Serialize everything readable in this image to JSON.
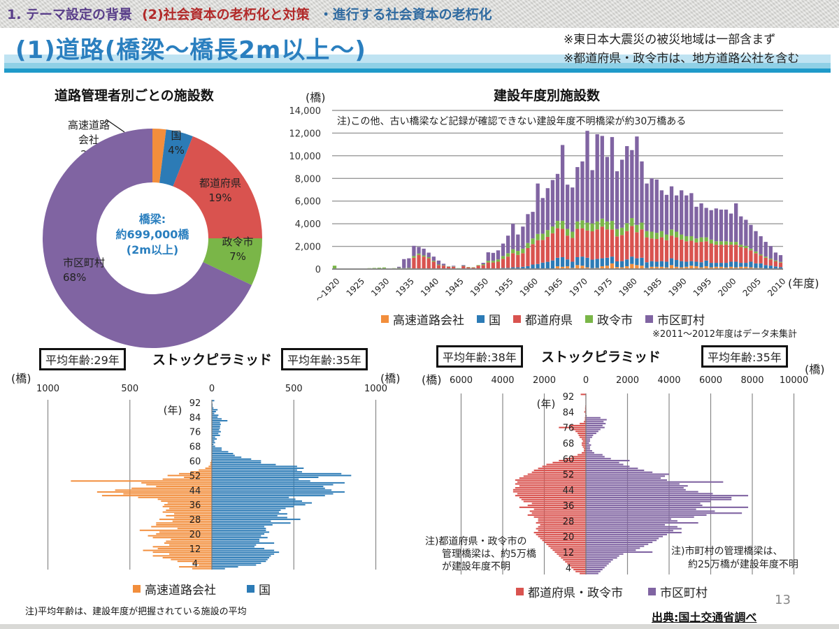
{
  "breadcrumb": {
    "part1": "1. テーマ設定の背景",
    "part2": "(2)社会資本の老朽化と対策",
    "part3": "・進行する社会資本の老朽化"
  },
  "page_title": "(1)道路(橋梁～橋長2m以上～)",
  "top_notes": [
    "※東日本大震災の被災地域は一部含まず",
    "※都道府県・政令市は、地方道路公社を含む"
  ],
  "colors": {
    "expressway": "#f28e3c",
    "national": "#2c7bb6",
    "prefecture": "#d9534f",
    "designated_city": "#7ab648",
    "municipality": "#8064a2",
    "title_blue": "#2a7fbf"
  },
  "page_number": "13",
  "source": "出典:国土交通省調べ",
  "bottom_left_note": "注)平均年齢は、建設年度が把握されている施設の平均",
  "chart_data": [
    {
      "type": "pie",
      "title": "道路管理者別ごとの施設数",
      "center_label": [
        "橋梁:",
        "約699,000橋",
        "(2m以上)"
      ],
      "slices": [
        {
          "label": "高速道路会社",
          "label_lines": [
            "高速道路",
            "会社"
          ],
          "value": 2,
          "text": "2%",
          "color": "#f28e3c"
        },
        {
          "label": "国",
          "label_lines": [
            "国"
          ],
          "value": 4,
          "text": "4%",
          "color": "#2c7bb6"
        },
        {
          "label": "都道府県",
          "label_lines": [
            "都道府県"
          ],
          "value": 19,
          "text": "19%",
          "color": "#d9534f"
        },
        {
          "label": "政令市",
          "label_lines": [
            "政令市"
          ],
          "value": 7,
          "text": "7%",
          "color": "#7ab648"
        },
        {
          "label": "市区町村",
          "label_lines": [
            "市区町村"
          ],
          "value": 68,
          "text": "68%",
          "color": "#8064a2"
        }
      ]
    },
    {
      "type": "bar",
      "stacked": true,
      "title": "建設年度別施設数",
      "ylabel": "(橋)",
      "xlabel": "(年度)",
      "ylim": [
        0,
        14000
      ],
      "yticks": [
        "0",
        "2,000",
        "4,000",
        "6,000",
        "8,000",
        "10,000",
        "12,000",
        "14,000"
      ],
      "ytick_values": [
        0,
        2000,
        4000,
        6000,
        8000,
        10000,
        12000,
        14000
      ],
      "xtick_labels": [
        "～1920",
        "1925",
        "1930",
        "1935",
        "1940",
        "1945",
        "1950",
        "1955",
        "1960",
        "1965",
        "1970",
        "1975",
        "1980",
        "1985",
        "1990",
        "1995",
        "2000",
        "2005",
        "2010"
      ],
      "annotation": "注)この他、古い橋梁など記録が確認できない建設年度不明橋梁が約30万橋ある",
      "footnote": "※2011～2012年度はデータ未集計",
      "grid": true,
      "legend_position": "bottom",
      "x_start": 1920,
      "x_end": 2010,
      "series": [
        {
          "name": "高速道路会社",
          "color": "#f28e3c",
          "values": [
            0,
            0,
            0,
            0,
            0,
            0,
            0,
            0,
            0,
            0,
            0,
            0,
            0,
            0,
            0,
            0,
            0,
            0,
            0,
            0,
            0,
            0,
            0,
            0,
            0,
            0,
            0,
            0,
            0,
            0,
            0,
            0,
            0,
            0,
            0,
            0,
            0,
            0,
            0,
            0,
            0,
            0,
            20,
            40,
            60,
            250,
            200,
            250,
            100,
            350,
            300,
            150,
            80,
            100,
            250,
            300,
            500,
            180,
            150,
            250,
            450,
            350,
            300,
            100,
            200,
            200,
            200,
            150,
            350,
            200,
            150,
            200,
            300,
            250,
            150,
            250,
            150,
            200,
            200,
            150,
            200,
            150,
            200,
            200,
            150,
            100,
            100,
            50,
            50,
            30,
            20
          ]
        },
        {
          "name": "国",
          "color": "#2c7bb6",
          "values": [
            0,
            0,
            0,
            0,
            0,
            0,
            0,
            0,
            0,
            0,
            0,
            0,
            0,
            0,
            0,
            0,
            0,
            0,
            0,
            0,
            0,
            0,
            0,
            0,
            0,
            0,
            0,
            0,
            0,
            0,
            0,
            30,
            30,
            50,
            100,
            100,
            150,
            150,
            200,
            250,
            400,
            450,
            550,
            600,
            700,
            750,
            850,
            600,
            550,
            700,
            800,
            850,
            750,
            800,
            700,
            700,
            600,
            500,
            550,
            600,
            650,
            600,
            700,
            500,
            500,
            450,
            500,
            500,
            600,
            600,
            550,
            450,
            400,
            400,
            450,
            500,
            400,
            350,
            350,
            400,
            450,
            500,
            350,
            350,
            500,
            400,
            400,
            300,
            250,
            200,
            150
          ]
        },
        {
          "name": "都道府県",
          "color": "#d9534f",
          "values": [
            0,
            0,
            0,
            0,
            0,
            0,
            0,
            0,
            0,
            0,
            0,
            0,
            0,
            0,
            0,
            0,
            1000,
            1250,
            1100,
            950,
            650,
            350,
            300,
            200,
            200,
            60,
            250,
            150,
            130,
            300,
            350,
            550,
            550,
            600,
            800,
            1000,
            1250,
            1100,
            1200,
            1600,
            1800,
            2100,
            2000,
            2200,
            2400,
            2600,
            2500,
            2100,
            2100,
            2500,
            2500,
            2400,
            2500,
            2600,
            2800,
            2500,
            2400,
            2200,
            2300,
            2500,
            2700,
            2300,
            2500,
            2200,
            2000,
            2000,
            2100,
            1900,
            2000,
            2000,
            1900,
            1800,
            1800,
            1700,
            1800,
            1700,
            1700,
            1600,
            1600,
            1600,
            1500,
            1500,
            1400,
            1300,
            1000,
            900,
            700,
            650,
            550,
            450,
            400
          ]
        },
        {
          "name": "政令市",
          "color": "#7ab648",
          "values": [
            300,
            0,
            0,
            0,
            0,
            50,
            60,
            80,
            100,
            120,
            140,
            60,
            80,
            100,
            80,
            100,
            150,
            120,
            100,
            100,
            80,
            50,
            30,
            30,
            30,
            20,
            30,
            30,
            30,
            50,
            80,
            150,
            150,
            200,
            250,
            300,
            350,
            350,
            400,
            450,
            500,
            550,
            550,
            600,
            600,
            650,
            700,
            600,
            550,
            650,
            700,
            700,
            700,
            700,
            700,
            700,
            750,
            650,
            650,
            700,
            700,
            650,
            600,
            550,
            600,
            550,
            550,
            500,
            550,
            500,
            450,
            450,
            400,
            350,
            400,
            350,
            350,
            300,
            300,
            300,
            250,
            250,
            200,
            200,
            150,
            150,
            100,
            100,
            80,
            80,
            60
          ]
        },
        {
          "name": "市区町村",
          "color": "#8064a2",
          "values": [
            0,
            0,
            0,
            0,
            0,
            0,
            0,
            0,
            0,
            0,
            0,
            0,
            0,
            100,
            800,
            850,
            900,
            580,
            600,
            400,
            370,
            350,
            140,
            20,
            60,
            0,
            70,
            0,
            0,
            0,
            120,
            750,
            700,
            800,
            1100,
            1550,
            2250,
            1450,
            1950,
            2550,
            2350,
            4450,
            3150,
            3700,
            4100,
            4150,
            6700,
            3900,
            3900,
            4800,
            5200,
            8100,
            4700,
            7700,
            7300,
            5700,
            7400,
            5100,
            6000,
            6800,
            6000,
            7800,
            5400,
            4200,
            4700,
            4700,
            3600,
            3500,
            3800,
            3200,
            3900,
            3600,
            3800,
            2800,
            3000,
            2600,
            2600,
            2900,
            2800,
            2800,
            2500,
            3400,
            2500,
            2300,
            2100,
            1800,
            1600,
            1300,
            1100,
            700,
            600
          ]
        }
      ]
    },
    {
      "type": "bar",
      "orientation": "horizontal-pyramid",
      "title": "ストックピラミッド",
      "left_avg_label": "平均年齢:29年",
      "right_avg_label": "平均年齢:35年",
      "unit_left": "(橋)",
      "unit_right": "(橋)",
      "age_unit": "(年)",
      "left_axis": {
        "ticks": [
          "1000",
          "500",
          "0"
        ],
        "values": [
          1000,
          500,
          0
        ]
      },
      "right_axis": {
        "ticks": [
          "500",
          "1000"
        ],
        "values": [
          500,
          1000
        ]
      },
      "xlim": [
        -1000,
        1000
      ],
      "age_ticks": [
        "92",
        "84",
        "76",
        "68",
        "60",
        "52",
        "44",
        "36",
        "28",
        "20",
        "12",
        "4"
      ],
      "age_range": [
        1,
        93
      ],
      "left_series": {
        "name": "高速道路会社",
        "color": "#f28e3c"
      },
      "right_series": {
        "name": "国",
        "color": "#2c7bb6"
      },
      "left_values": [
        120,
        200,
        80,
        120,
        210,
        250,
        300,
        360,
        260,
        360,
        420,
        330,
        360,
        260,
        290,
        280,
        250,
        360,
        390,
        340,
        320,
        440,
        210,
        370,
        340,
        340,
        240,
        320,
        230,
        280,
        230,
        300,
        280,
        260,
        300,
        290,
        270,
        310,
        330,
        450,
        670,
        540,
        700,
        590,
        490,
        340,
        400,
        430,
        860,
        300,
        170,
        270,
        200,
        130,
        80,
        40,
        20,
        10,
        10,
        5,
        0,
        0,
        0,
        0,
        0,
        0,
        0,
        0,
        0,
        0,
        0,
        0,
        0,
        0,
        0,
        0,
        0,
        0,
        0,
        0,
        0,
        0,
        0,
        0,
        0,
        0,
        0,
        0,
        0,
        0,
        0,
        0,
        0
      ],
      "right_values": [
        80,
        160,
        270,
        300,
        330,
        340,
        350,
        360,
        380,
        410,
        380,
        320,
        260,
        270,
        380,
        290,
        290,
        340,
        300,
        320,
        350,
        330,
        330,
        320,
        370,
        480,
        360,
        540,
        460,
        400,
        460,
        410,
        420,
        450,
        500,
        570,
        610,
        550,
        510,
        470,
        690,
        740,
        810,
        730,
        690,
        680,
        740,
        810,
        600,
        530,
        650,
        850,
        790,
        550,
        520,
        560,
        520,
        390,
        300,
        300,
        240,
        180,
        140,
        130,
        100,
        60,
        60,
        20,
        10,
        20,
        15,
        30,
        20,
        50,
        40,
        55,
        45,
        50,
        50,
        55,
        50,
        95,
        60,
        35,
        40,
        15,
        25,
        35,
        10,
        5,
        5,
        0,
        15
      ]
    },
    {
      "type": "bar",
      "orientation": "horizontal-pyramid",
      "title": "ストックピラミッド",
      "left_avg_label": "平均年齢:38年",
      "right_avg_label": "平均年齢:35年",
      "unit_left": "(橋)",
      "unit_right": "(橋)",
      "age_unit": "(年)",
      "left_axis": {
        "ticks": [
          "6000",
          "4000",
          "2000",
          "0"
        ],
        "values": [
          6000,
          4000,
          2000,
          0
        ]
      },
      "right_axis": {
        "ticks": [
          "2000",
          "4000",
          "6000",
          "8000",
          "10000"
        ],
        "values": [
          2000,
          4000,
          6000,
          8000,
          10000
        ]
      },
      "xlim": [
        -6000,
        10000
      ],
      "age_ticks": [
        "92",
        "84",
        "76",
        "68",
        "60",
        "52",
        "44",
        "36",
        "28",
        "20",
        "12",
        "4"
      ],
      "age_range": [
        1,
        93
      ],
      "left_series": {
        "name": "都道府県・政令市",
        "color": "#d9534f"
      },
      "right_series": {
        "name": "市区町村",
        "color": "#8064a2"
      },
      "left_values": [
        300,
        500,
        600,
        700,
        800,
        900,
        1000,
        1100,
        1200,
        1300,
        1400,
        1500,
        1600,
        1700,
        1800,
        1900,
        2000,
        2100,
        2200,
        2300,
        2400,
        2500,
        2300,
        2400,
        2300,
        2200,
        2400,
        2300,
        2300,
        2500,
        2800,
        2600,
        2700,
        2500,
        3200,
        2800,
        2600,
        3000,
        3100,
        3200,
        3400,
        3300,
        3500,
        3500,
        3400,
        3200,
        3400,
        3300,
        3400,
        3200,
        3000,
        2800,
        2600,
        2500,
        2300,
        2100,
        1900,
        1600,
        1300,
        1000,
        700,
        400,
        200,
        100,
        100,
        150,
        200,
        200,
        150,
        200,
        300,
        350,
        400,
        500,
        700,
        1300,
        800,
        300,
        100,
        50,
        50,
        30,
        30,
        80,
        40,
        40,
        30,
        20,
        20,
        20,
        20,
        20,
        250
      ],
      "right_values": [
        600,
        700,
        800,
        900,
        1000,
        1100,
        1200,
        1300,
        1500,
        1600,
        1800,
        3200,
        2400,
        2600,
        2800,
        3000,
        3200,
        3400,
        3500,
        3700,
        3900,
        4600,
        4200,
        4600,
        4400,
        3800,
        5400,
        4400,
        4100,
        5200,
        5800,
        7500,
        6200,
        5300,
        7800,
        5600,
        5500,
        6000,
        7000,
        7000,
        7800,
        6100,
        5400,
        4800,
        4700,
        4900,
        4500,
        6600,
        3900,
        3600,
        3800,
        4000,
        3200,
        2800,
        2500,
        2100,
        1800,
        1600,
        2100,
        1200,
        900,
        800,
        400,
        300,
        200,
        200,
        250,
        150,
        200,
        200,
        300,
        350,
        500,
        600,
        700,
        900,
        800,
        950,
        850,
        1000,
        700,
        40,
        20,
        20,
        20,
        10,
        10,
        10,
        10,
        10,
        10,
        10,
        10
      ],
      "left_note": [
        "注)都道府県・政令市の",
        "管理橋梁は、約5万橋",
        "が建設年度不明"
      ],
      "right_note": [
        "注)市町村の管理橋梁は、",
        "約25万橋が建設年度不明"
      ]
    }
  ]
}
